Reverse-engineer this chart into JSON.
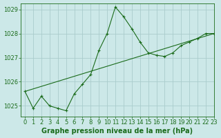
{
  "xlabel": "Graphe pression niveau de la mer (hPa)",
  "bg_color": "#cce8e8",
  "grid_color": "#aacccc",
  "line_color": "#1a6b1a",
  "xlim": [
    -0.5,
    23
  ],
  "ylim": [
    1024.55,
    1029.25
  ],
  "yticks": [
    1025,
    1026,
    1027,
    1028,
    1029
  ],
  "xticks": [
    0,
    1,
    2,
    3,
    4,
    5,
    6,
    7,
    8,
    9,
    10,
    11,
    12,
    13,
    14,
    15,
    16,
    17,
    18,
    19,
    20,
    21,
    22,
    23
  ],
  "series1_x": [
    0,
    1,
    2,
    3,
    4,
    5,
    6,
    7,
    8,
    9,
    10,
    11,
    12,
    13,
    14,
    15,
    16,
    17,
    18,
    19,
    20,
    21,
    22,
    23
  ],
  "series1_y": [
    1025.6,
    1024.9,
    1025.4,
    1025.0,
    1024.9,
    1024.8,
    1025.5,
    1025.9,
    1026.3,
    1027.3,
    1028.0,
    1029.1,
    1028.7,
    1028.2,
    1027.65,
    1027.2,
    1027.1,
    1027.05,
    1027.2,
    1027.5,
    1027.65,
    1027.8,
    1028.0,
    1028.0
  ],
  "series2_x": [
    0,
    23
  ],
  "series2_y": [
    1025.6,
    1028.0
  ],
  "tick_fontsize": 6,
  "label_fontsize": 7
}
